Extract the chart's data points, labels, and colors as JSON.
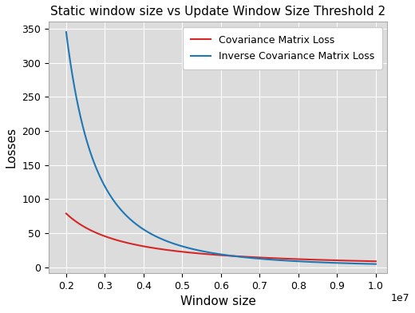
{
  "title": "Static window size vs Update Window Size Threshold 2",
  "xlabel": "Window size",
  "ylabel": "Losses",
  "xlim": [
    1550000.0,
    10300000.0
  ],
  "ylim": [
    -8,
    360
  ],
  "yticks": [
    0,
    50,
    100,
    150,
    200,
    250,
    300,
    350
  ],
  "xticks": [
    2000000,
    3000000,
    4000000,
    5000000,
    6000000,
    7000000,
    8000000,
    9000000,
    10000000
  ],
  "legend_labels": [
    "Covariance Matrix Loss",
    "Inverse Covariance Matrix Loss"
  ],
  "cov_color": "#d62728",
  "inv_cov_color": "#1f77b4",
  "background_color": "#dcdcdc",
  "grid_color": "white",
  "linewidth": 1.5,
  "cov_x0": 2000000,
  "cov_y0": 79,
  "cov_x1": 10000000,
  "cov_y1": 9,
  "inv_cov_x0": 2000000,
  "inv_cov_y0": 345,
  "inv_cov_x1": 10000000,
  "inv_cov_y1": 5,
  "inv_cov_power": 3.2
}
